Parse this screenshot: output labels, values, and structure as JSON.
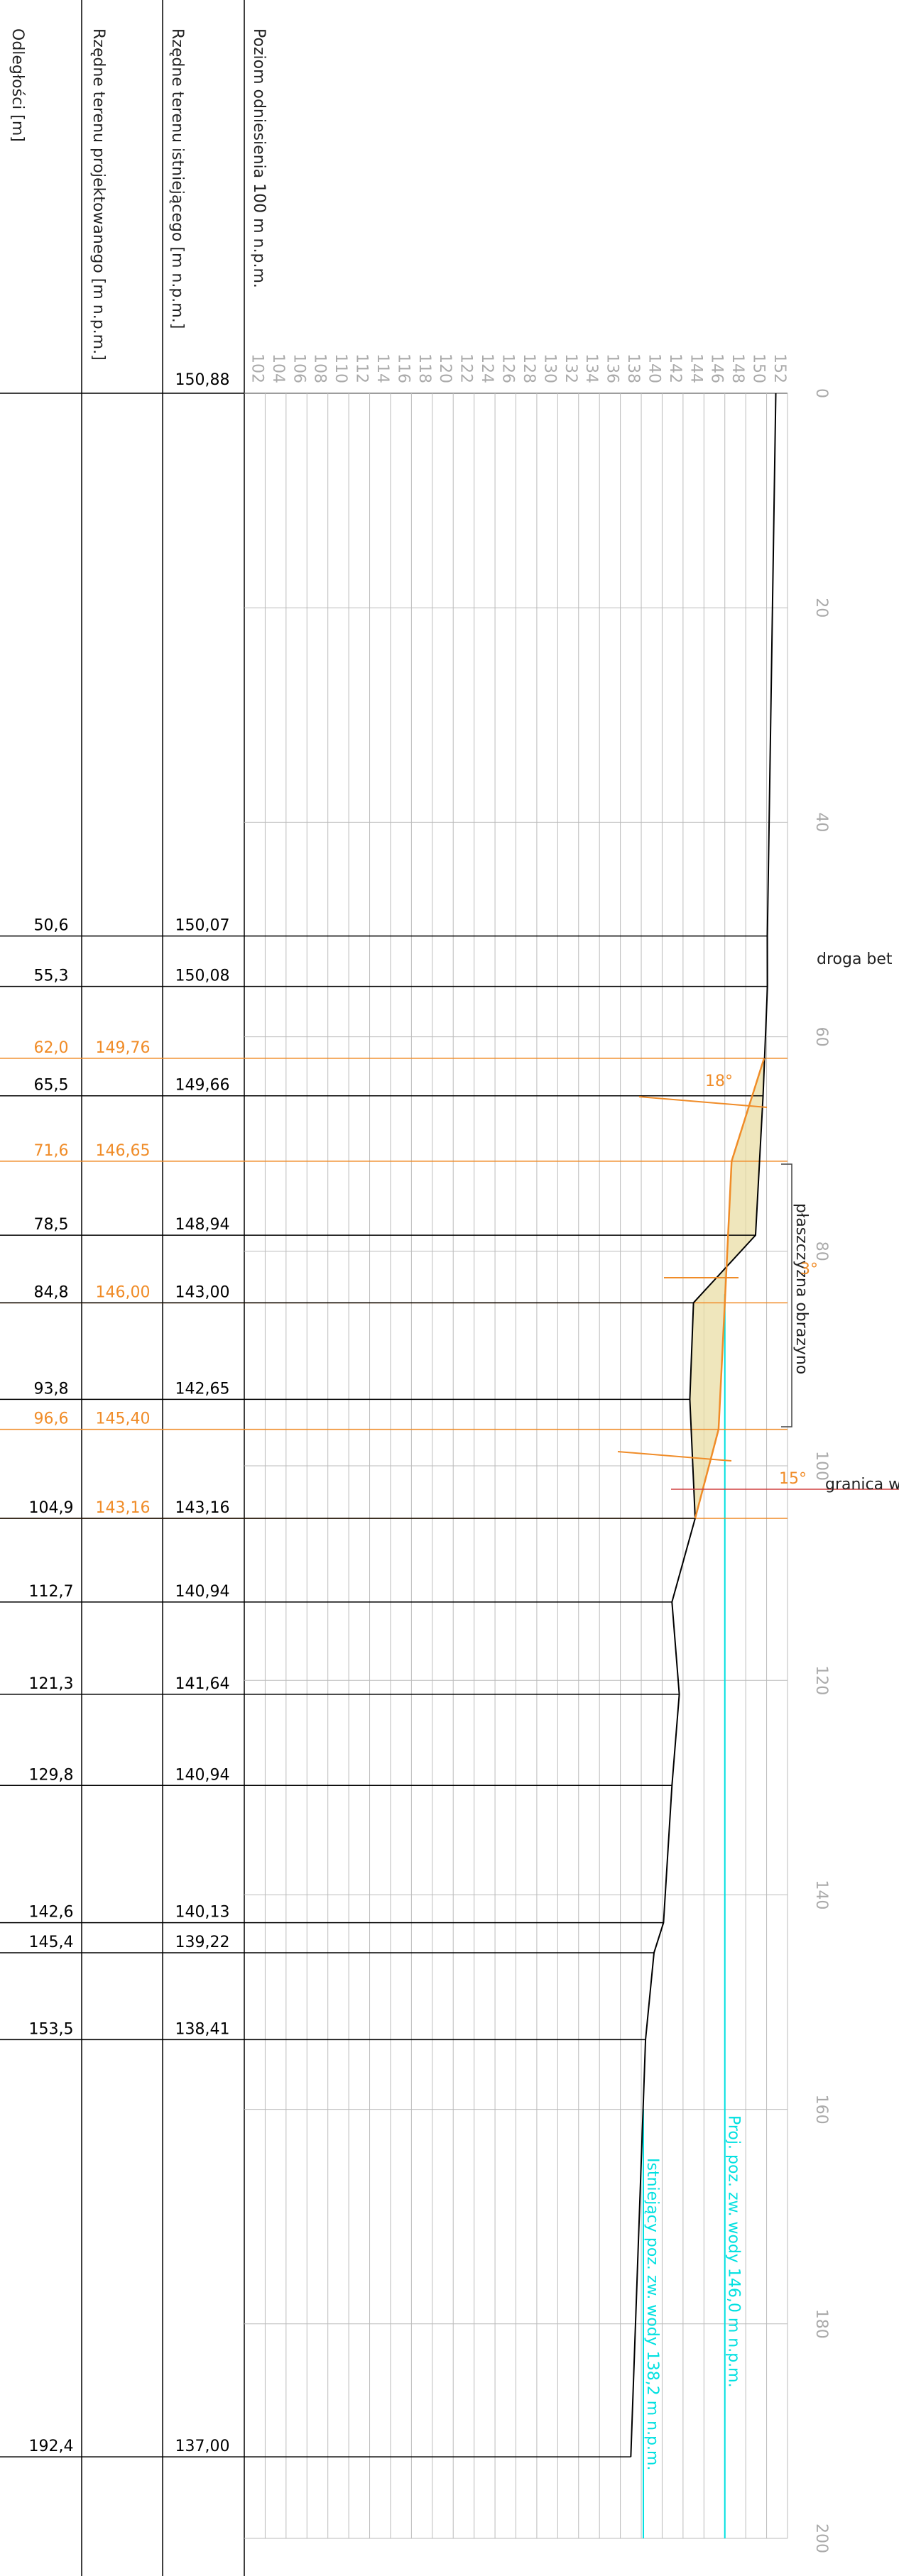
{
  "chart_data": {
    "type": "profile",
    "column_titles": [
      "Odległości [m]",
      "Rzędne terenu projektowanego [m n.p.m.]",
      "Rzędne terenu istniejącego [m n.p.m.]",
      "Poziom odniesienia 100 m n.p.m."
    ],
    "xlim": [
      0,
      200
    ],
    "xticks": [
      0,
      20,
      40,
      60,
      80,
      100,
      120,
      140,
      160,
      180,
      200
    ],
    "ylim": [
      100,
      152
    ],
    "yticks": [
      102,
      104,
      106,
      108,
      110,
      112,
      114,
      116,
      118,
      120,
      122,
      124,
      126,
      128,
      130,
      132,
      134,
      136,
      138,
      140,
      142,
      144,
      146,
      148,
      150,
      152
    ],
    "grid": true,
    "existing": {
      "color": "#000000",
      "x": [
        0,
        50.6,
        55.3,
        65.5,
        78.5,
        84.8,
        93.8,
        104.9,
        112.7,
        121.3,
        129.8,
        142.6,
        145.4,
        153.5,
        192.4
      ],
      "x_labels": [
        null,
        "50,6",
        "55,3",
        "65,5",
        "78,5",
        "84,8",
        "93,8",
        "104,9",
        "112,7",
        "121,3",
        "129,8",
        "142,6",
        "145,4",
        "153,5",
        "192,4"
      ],
      "values": [
        150.88,
        150.07,
        150.08,
        149.66,
        148.94,
        143.0,
        142.65,
        143.16,
        140.94,
        141.64,
        140.94,
        140.13,
        139.22,
        138.41,
        137.0
      ],
      "value_labels": [
        "150,88",
        "150,07",
        "150,08",
        "149,66",
        "148,94",
        "143,00",
        "142,65",
        "143,16",
        "140,94",
        "141,64",
        "140,94",
        "140,13",
        "139,22",
        "138,41",
        "137,00"
      ]
    },
    "design": {
      "color": "#f08c28",
      "x": [
        62.0,
        71.6,
        84.8,
        96.6,
        104.9
      ],
      "x_labels": [
        "62,0",
        "71,6",
        null,
        "96,6",
        null
      ],
      "values": [
        149.76,
        146.65,
        146.0,
        145.4,
        143.16
      ],
      "value_labels": [
        "149,76",
        "146,65",
        "146,00",
        "145,40",
        "143,16"
      ]
    },
    "water_levels": [
      {
        "label": "Proj. poz. zw. wody 146,0 m n.p.m.",
        "value": 146.0,
        "color": "#00e0e0"
      },
      {
        "label": "Istniejący poz. zw. wody 138,2 m n.p.m.",
        "value": 138.2,
        "color": "#00e0e0"
      }
    ],
    "annotations": [
      "droga bet",
      "płaszczyzna obrazyno",
      "granica w"
    ],
    "angles": [
      "18°",
      "3°",
      "15°"
    ]
  }
}
